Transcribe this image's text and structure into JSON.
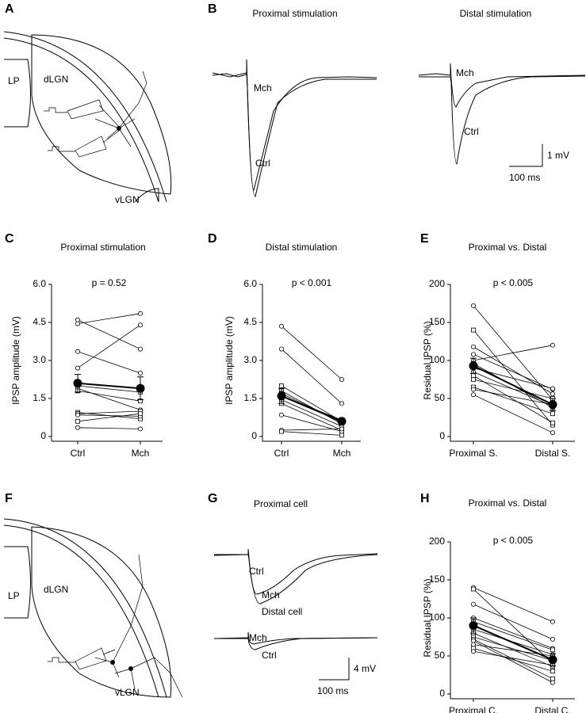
{
  "figure": {
    "panel_labels": [
      "A",
      "B",
      "C",
      "D",
      "E",
      "F",
      "G",
      "H"
    ],
    "A": {
      "labels": [
        "LP",
        "dLGN",
        "vLGN"
      ]
    },
    "B": {
      "titles": [
        "Proximal stimulation",
        "Distal stimulation"
      ],
      "trace_labels": [
        "Mch",
        "Ctrl",
        "Mch",
        "Ctrl"
      ],
      "scale": [
        "1 mV",
        "100 ms"
      ]
    },
    "F": {
      "labels": [
        "LP",
        "dLGN",
        "vLGN"
      ]
    },
    "G": {
      "titles": [
        "Proximal cell",
        "Distal cell"
      ],
      "trace_labels": [
        "Ctrl",
        "Mch",
        "Mch",
        "Ctrl"
      ],
      "scale": [
        "4 mV",
        "100 ms"
      ]
    }
  },
  "chart_data": [
    {
      "type": "paired",
      "title": "Proximal stimulation",
      "annotation": "p = 0.52",
      "y_label": "IPSP amplitude (mV)",
      "categories": [
        "Ctrl",
        "Mch"
      ],
      "ylim": [
        0,
        6
      ],
      "yticks": [
        0,
        1.5,
        {
          "value": 3,
          "label": "3.0"
        },
        4.5,
        {
          "value": 6,
          "label": "6.0"
        }
      ],
      "series": [
        {
          "marker": "circle",
          "values": [
            4.6,
            3.45
          ]
        },
        {
          "marker": "circle",
          "values": [
            4.45,
            4.85
          ]
        },
        {
          "marker": "circle",
          "values": [
            3.35,
            2.5
          ]
        },
        {
          "marker": "circle",
          "values": [
            2.7,
            4.4
          ]
        },
        {
          "marker": "square",
          "values": [
            2.0,
            1.75
          ]
        },
        {
          "marker": "circle",
          "values": [
            1.9,
            1.05
          ]
        },
        {
          "marker": "square",
          "values": [
            1.8,
            1.4
          ]
        },
        {
          "marker": "square",
          "values": [
            0.95,
            0.7
          ]
        },
        {
          "marker": "square",
          "values": [
            0.9,
            1.0
          ]
        },
        {
          "marker": "circle",
          "values": [
            0.85,
            0.8
          ]
        },
        {
          "marker": "square",
          "values": [
            0.6,
            0.9
          ]
        },
        {
          "marker": "circle",
          "values": [
            0.35,
            0.3
          ]
        }
      ],
      "mean": {
        "values": [
          2.1,
          1.9
        ],
        "errors": [
          0.35,
          0.45
        ]
      }
    },
    {
      "type": "paired",
      "title": "Distal stimulation",
      "annotation": "p < 0.001",
      "y_label": "IPSP amplitude (mV)",
      "categories": [
        "Ctrl",
        "Mch"
      ],
      "ylim": [
        0,
        6
      ],
      "yticks": [
        0,
        1.5,
        {
          "value": 3,
          "label": "3.0"
        },
        4.5,
        {
          "value": 6,
          "label": "6.0"
        }
      ],
      "series": [
        {
          "marker": "circle",
          "values": [
            4.35,
            2.25
          ]
        },
        {
          "marker": "circle",
          "values": [
            3.45,
            1.3
          ]
        },
        {
          "marker": "square",
          "values": [
            2.0,
            0.6
          ]
        },
        {
          "marker": "square",
          "values": [
            1.8,
            0.5
          ]
        },
        {
          "marker": "square",
          "values": [
            1.7,
            0.55
          ]
        },
        {
          "marker": "circle",
          "values": [
            1.6,
            0.65
          ]
        },
        {
          "marker": "square",
          "values": [
            1.45,
            0.4
          ]
        },
        {
          "marker": "square",
          "values": [
            1.3,
            0.25
          ]
        },
        {
          "marker": "circle",
          "values": [
            0.85,
            0.2
          ]
        },
        {
          "marker": "circle",
          "values": [
            0.25,
            0.3
          ]
        },
        {
          "marker": "square",
          "values": [
            0.2,
            0.05
          ]
        }
      ],
      "mean": {
        "values": [
          1.6,
          0.6
        ],
        "errors": [
          0.3,
          0.12
        ]
      }
    },
    {
      "type": "paired",
      "title": "Proximal vs. Distal",
      "annotation": "p < 0.005",
      "y_label": "Residual IPSP (%)",
      "categories": [
        "Proximal S.",
        "Distal S."
      ],
      "ylim": [
        0,
        200
      ],
      "yticks": [
        0,
        50,
        100,
        150,
        200
      ],
      "series": [
        {
          "marker": "circle",
          "values": [
            172,
            48
          ]
        },
        {
          "marker": "square",
          "values": [
            140,
            15
          ]
        },
        {
          "marker": "circle",
          "values": [
            118,
            56
          ]
        },
        {
          "marker": "circle",
          "values": [
            108,
            62
          ]
        },
        {
          "marker": "circle",
          "values": [
            100,
            120
          ]
        },
        {
          "marker": "square",
          "values": [
            96,
            38
          ]
        },
        {
          "marker": "circle",
          "values": [
            90,
            63
          ]
        },
        {
          "marker": "circle",
          "values": [
            85,
            40
          ]
        },
        {
          "marker": "square",
          "values": [
            80,
            18
          ]
        },
        {
          "marker": "square",
          "values": [
            75,
            50
          ]
        },
        {
          "marker": "square",
          "values": [
            65,
            30
          ]
        },
        {
          "marker": "circle",
          "values": [
            62,
            42
          ]
        },
        {
          "marker": "circle",
          "values": [
            55,
            5
          ]
        }
      ],
      "mean": {
        "values": [
          93,
          42
        ],
        "errors": [
          10,
          8
        ]
      }
    },
    {
      "type": "paired",
      "title": "Proximal vs. Distal",
      "annotation": "p < 0.005",
      "y_label": "Residual IPSP (%)",
      "categories": [
        "Proximal C.",
        "Distal C."
      ],
      "ylim": [
        0,
        200
      ],
      "yticks": [
        0,
        50,
        100,
        150,
        200
      ],
      "series": [
        {
          "marker": "circle",
          "values": [
            140,
            95
          ]
        },
        {
          "marker": "square",
          "values": [
            138,
            40
          ]
        },
        {
          "marker": "circle",
          "values": [
            118,
            72
          ]
        },
        {
          "marker": "circle",
          "values": [
            100,
            60
          ]
        },
        {
          "marker": "square",
          "values": [
            95,
            58
          ]
        },
        {
          "marker": "circle",
          "values": [
            85,
            52
          ]
        },
        {
          "marker": "square",
          "values": [
            80,
            36
          ]
        },
        {
          "marker": "square",
          "values": [
            75,
            44
          ]
        },
        {
          "marker": "square",
          "values": [
            72,
            20
          ]
        },
        {
          "marker": "circle",
          "values": [
            70,
            15
          ]
        },
        {
          "marker": "circle",
          "values": [
            65,
            50
          ]
        },
        {
          "marker": "square",
          "values": [
            60,
            30
          ]
        },
        {
          "marker": "circle",
          "values": [
            56,
            38
          ]
        }
      ],
      "mean": {
        "values": [
          90,
          45
        ],
        "errors": [
          10,
          8
        ]
      }
    }
  ]
}
